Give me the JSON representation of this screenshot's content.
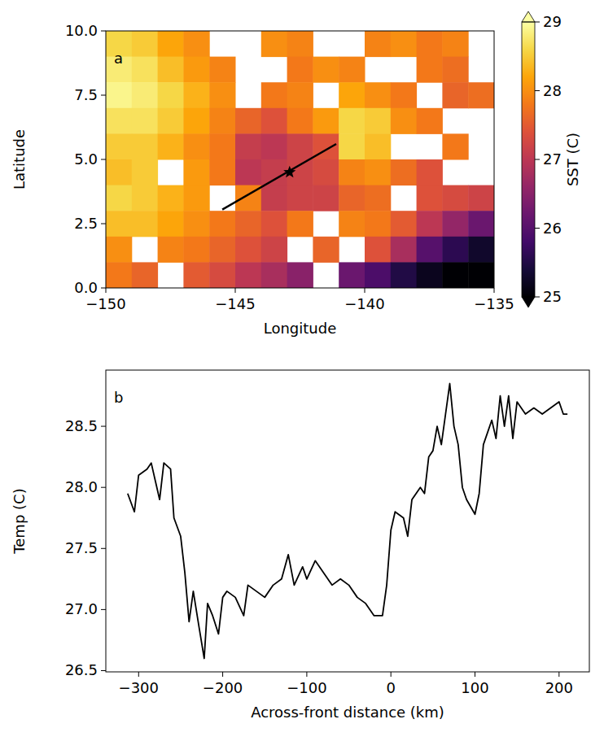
{
  "chart_data": [
    {
      "type": "heatmap",
      "panel_label": "a",
      "x_label": "Longitude",
      "y_label": "Latitude",
      "xlim": [
        -150,
        -135
      ],
      "ylim": [
        0,
        10
      ],
      "xticks": [
        {
          "value": -150,
          "label": "−150"
        },
        {
          "value": -145,
          "label": "−145"
        },
        {
          "value": -140,
          "label": "−140"
        },
        {
          "value": -135,
          "label": "−135"
        }
      ],
      "yticks": [
        {
          "value": 0,
          "label": "0.0"
        },
        2.5,
        {
          "value": 5,
          "label": "5.0"
        },
        7.5,
        {
          "value": 10,
          "label": "10.0"
        }
      ],
      "cell_lon_edges": [
        -150,
        -149,
        -148,
        -147,
        -146,
        -145,
        -144,
        -143,
        -142,
        -141,
        -140,
        -139,
        -138,
        -137,
        -136,
        -135
      ],
      "cell_lat_edges": [
        10,
        9,
        8,
        7,
        6,
        5,
        4,
        3,
        2,
        1,
        0
      ],
      "cells": [
        [
          28.6,
          28.5,
          28.2,
          28.0,
          null,
          null,
          28.0,
          27.9,
          null,
          null,
          27.9,
          28.0,
          27.8,
          27.9,
          null
        ],
        [
          28.8,
          28.7,
          28.4,
          28.1,
          27.9,
          null,
          null,
          27.8,
          28.0,
          27.9,
          null,
          null,
          27.8,
          27.7,
          null
        ],
        [
          28.9,
          28.8,
          28.6,
          28.3,
          28.0,
          null,
          27.8,
          27.9,
          null,
          28.2,
          28.0,
          27.8,
          null,
          27.6,
          27.7
        ],
        [
          28.7,
          28.7,
          28.5,
          28.2,
          27.9,
          27.6,
          27.4,
          27.8,
          28.1,
          28.6,
          28.5,
          28.0,
          27.8,
          null,
          null
        ],
        [
          28.5,
          28.5,
          28.3,
          28.0,
          27.8,
          27.1,
          27.0,
          27.2,
          27.4,
          28.6,
          28.4,
          null,
          null,
          27.8,
          null
        ],
        [
          28.4,
          28.5,
          null,
          28.1,
          27.8,
          27.0,
          27.1,
          27.2,
          27.3,
          27.9,
          28.0,
          27.7,
          27.4,
          null,
          null
        ],
        [
          28.6,
          28.5,
          28.3,
          28.1,
          null,
          27.9,
          27.1,
          27.2,
          27.2,
          27.6,
          27.7,
          null,
          27.4,
          27.3,
          27.2
        ],
        [
          28.4,
          28.4,
          28.2,
          28.0,
          27.8,
          27.6,
          27.4,
          27.8,
          null,
          27.9,
          27.8,
          27.5,
          27.0,
          26.6,
          26.2
        ],
        [
          28.0,
          null,
          27.9,
          27.8,
          27.6,
          27.4,
          27.2,
          null,
          27.6,
          null,
          27.4,
          26.8,
          26.0,
          25.6,
          25.3
        ],
        [
          27.8,
          27.6,
          null,
          27.5,
          27.3,
          27.0,
          26.8,
          26.5,
          null,
          26.2,
          25.9,
          25.5,
          25.2,
          24.9,
          24.8
        ]
      ],
      "colorbar": {
        "label": "SST (C)",
        "range": [
          25,
          29
        ],
        "ticks": [
          25,
          26,
          27,
          28,
          29
        ]
      },
      "transect": {
        "lon": [
          -145.5,
          -141.1
        ],
        "lat": [
          3.05,
          5.6
        ]
      },
      "star": {
        "lon": -142.9,
        "lat": 4.5
      }
    },
    {
      "type": "line",
      "panel_label": "b",
      "x_label": "Across-front distance (km)",
      "y_label": "Temp (C)",
      "color": "#000000",
      "xlim": [
        -339,
        236
      ],
      "ylim": [
        26.49,
        28.96
      ],
      "xticks": [
        {
          "value": -300,
          "label": "−300"
        },
        {
          "value": -200,
          "label": "−200"
        },
        {
          "value": -100,
          "label": "−100"
        },
        0,
        100,
        200
      ],
      "yticks": [
        26.5,
        {
          "value": 27,
          "label": "27.0"
        },
        27.5,
        {
          "value": 28,
          "label": "28.0"
        },
        28.5
      ],
      "x": [
        -313,
        -305,
        -300,
        -290,
        -285,
        -280,
        -275,
        -270,
        -262,
        -258,
        -250,
        -245,
        -240,
        -235,
        -228,
        -222,
        -218,
        -212,
        -205,
        -200,
        -195,
        -185,
        -175,
        -170,
        -160,
        -150,
        -140,
        -130,
        -122,
        -115,
        -105,
        -100,
        -90,
        -80,
        -70,
        -60,
        -50,
        -40,
        -30,
        -20,
        -10,
        -5,
        0,
        5,
        15,
        20,
        25,
        35,
        40,
        45,
        50,
        55,
        60,
        65,
        70,
        75,
        80,
        85,
        90,
        100,
        105,
        110,
        115,
        120,
        125,
        130,
        135,
        140,
        145,
        150,
        160,
        170,
        180,
        190,
        200,
        205,
        210
      ],
      "values": [
        27.95,
        27.8,
        28.1,
        28.15,
        28.2,
        28.05,
        27.9,
        28.2,
        28.15,
        27.75,
        27.6,
        27.3,
        26.9,
        27.15,
        26.85,
        26.6,
        27.05,
        26.95,
        26.8,
        27.1,
        27.15,
        27.1,
        26.95,
        27.2,
        27.15,
        27.1,
        27.2,
        27.25,
        27.45,
        27.2,
        27.35,
        27.25,
        27.4,
        27.3,
        27.2,
        27.25,
        27.2,
        27.1,
        27.05,
        26.95,
        26.95,
        27.2,
        27.65,
        27.8,
        27.75,
        27.6,
        27.9,
        28.0,
        27.95,
        28.25,
        28.3,
        28.5,
        28.35,
        28.6,
        28.85,
        28.5,
        28.35,
        28.0,
        27.9,
        27.78,
        27.95,
        28.35,
        28.45,
        28.55,
        28.4,
        28.75,
        28.5,
        28.75,
        28.4,
        28.7,
        28.6,
        28.65,
        28.6,
        28.65,
        28.7,
        28.6,
        28.6
      ]
    }
  ]
}
